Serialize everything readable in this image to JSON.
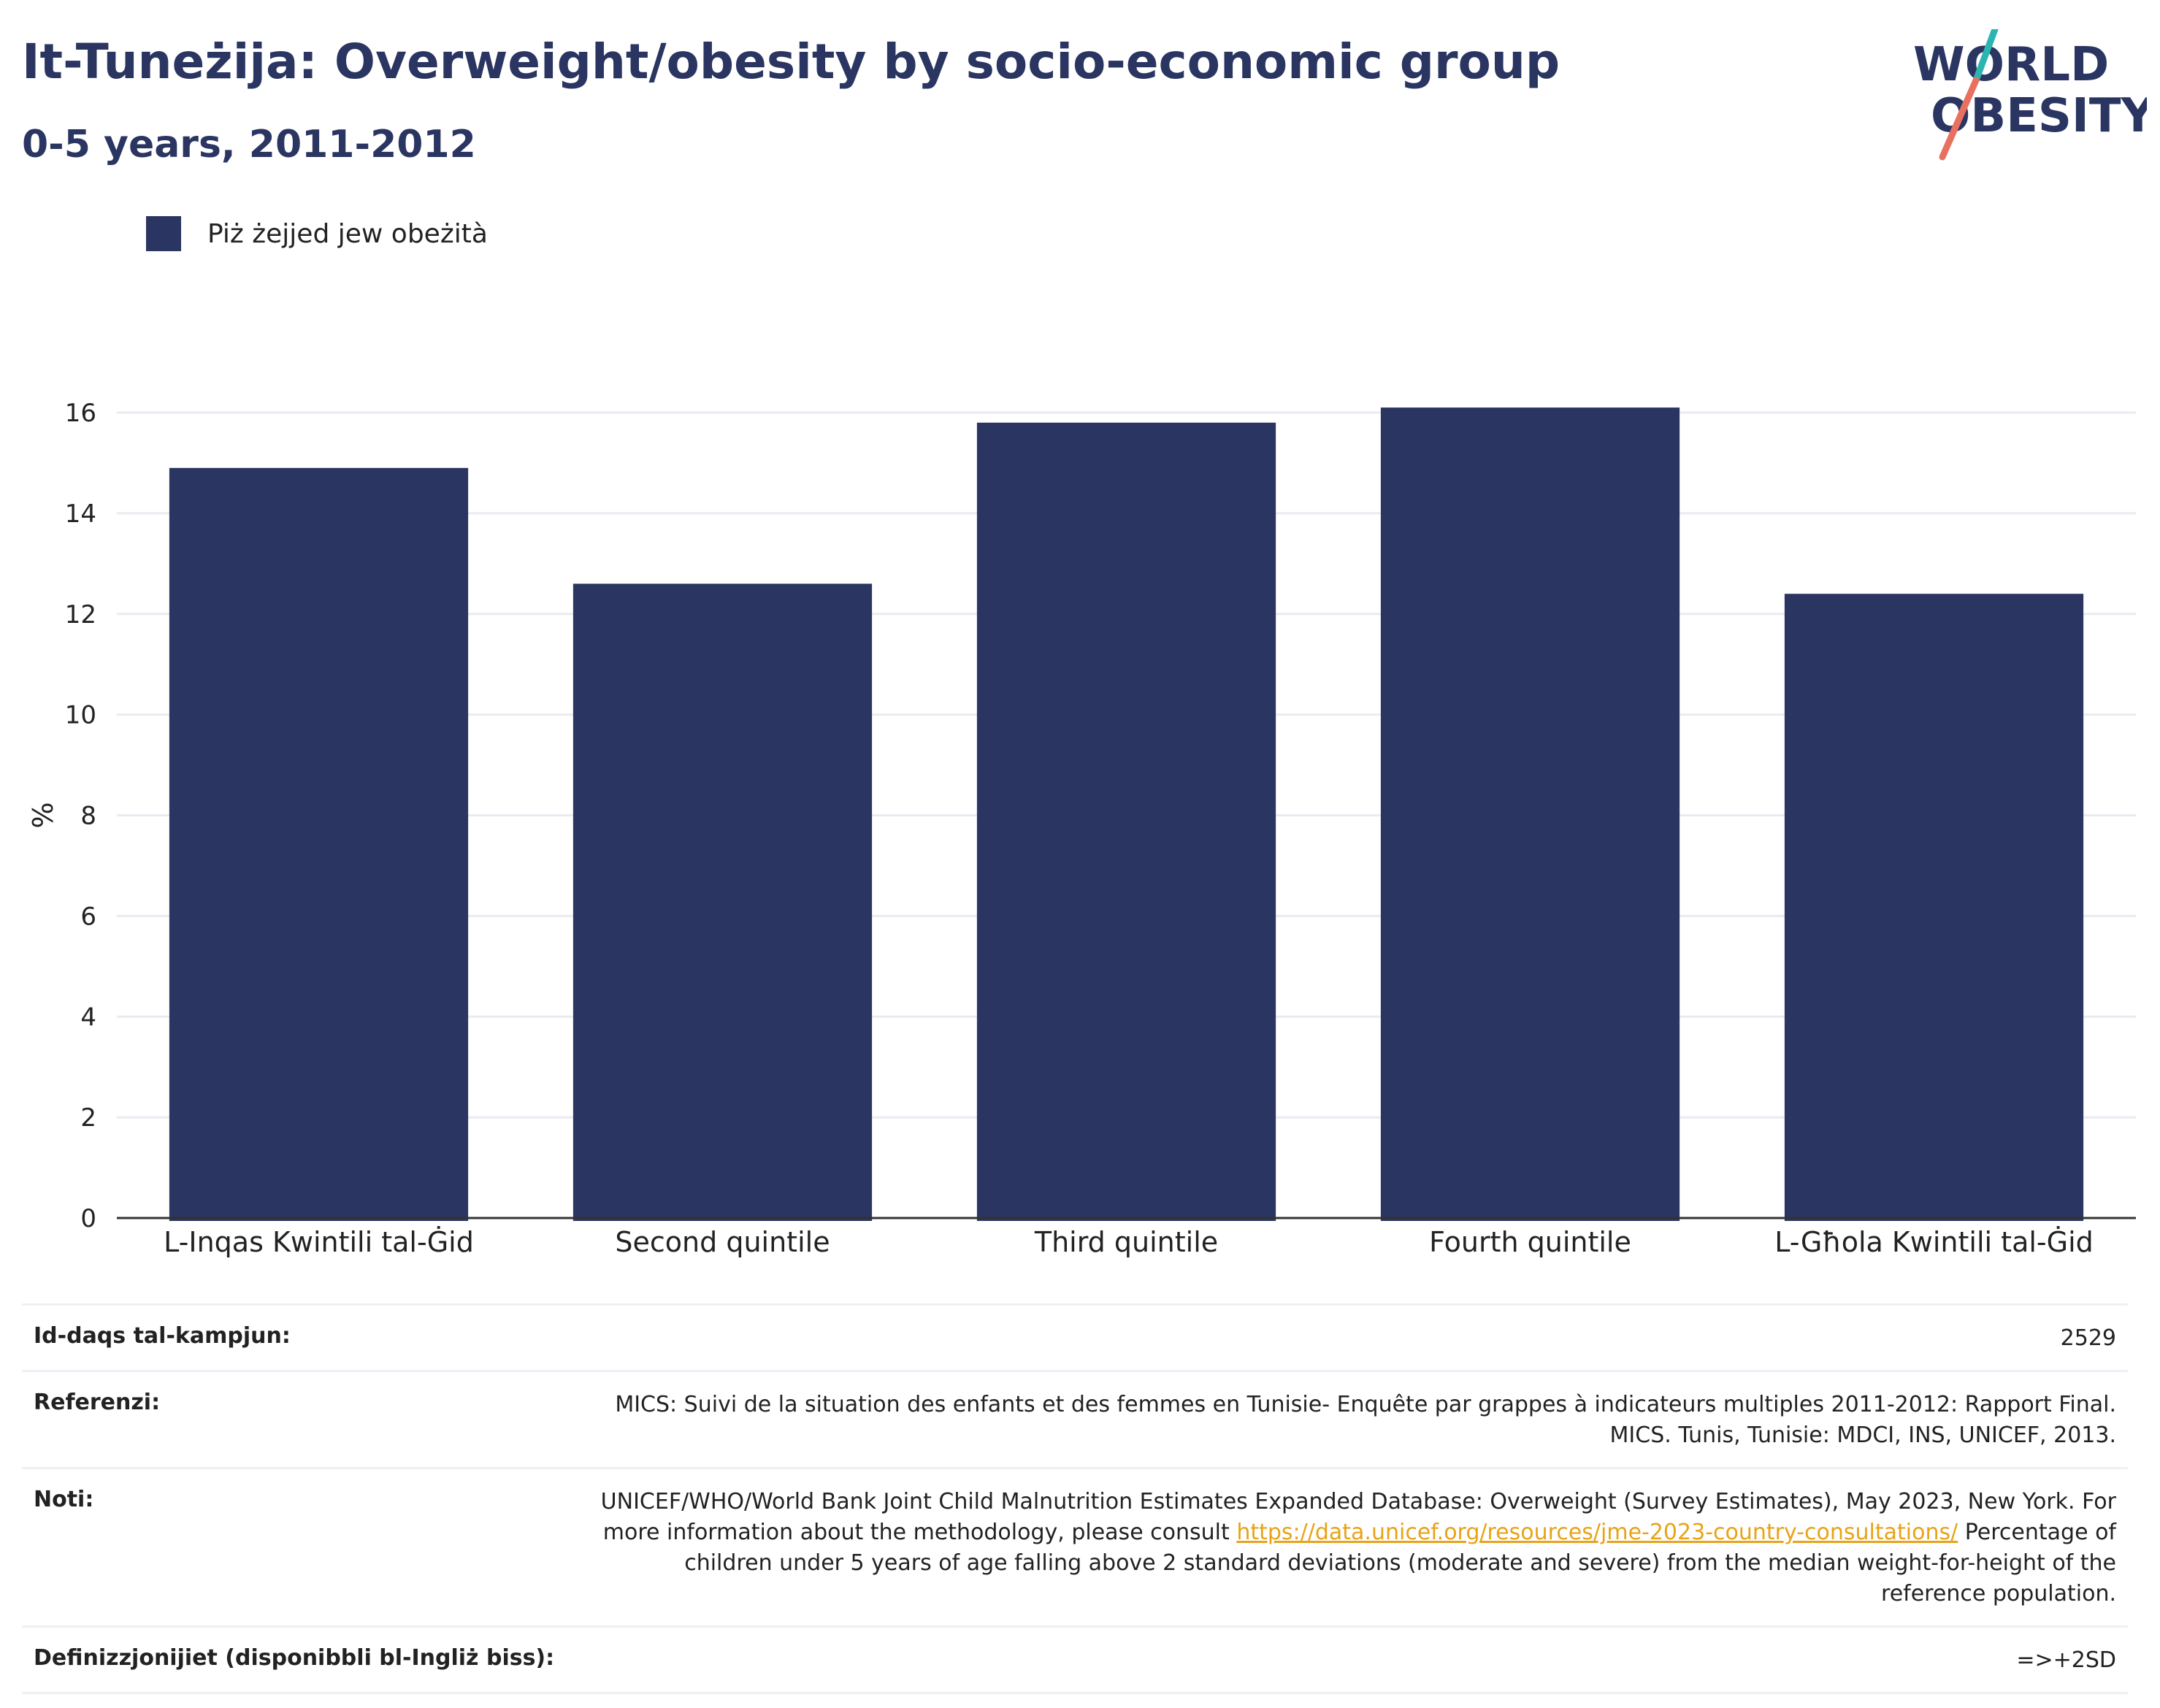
{
  "header": {
    "title": "It-Tuneżija: Overweight/obesity by socio-economic group",
    "subtitle": "0-5 years, 2011-2012"
  },
  "logo": {
    "line1": "WORLD",
    "line2": "OBESITY",
    "colors": {
      "text": "#2a3561",
      "slash_top": "#2cb5b0",
      "slash_bottom": "#e8705f"
    }
  },
  "legend": {
    "label": "Piż żejjed jew obeżità",
    "color": "#2a3561"
  },
  "chart_data": {
    "type": "bar",
    "categories": [
      "L-Inqas Kwintili tal-Ġid",
      "Second quintile",
      "Third quintile",
      "Fourth quintile",
      "L-Għola Kwintili tal-Ġid"
    ],
    "series": [
      {
        "name": "Piż żejjed jew obeżità",
        "values": [
          14.9,
          12.6,
          15.8,
          16.1,
          12.4
        ],
        "color": "#2a3561"
      }
    ],
    "ylabel": "%",
    "ylim": [
      0,
      16
    ],
    "yticks": [
      "0",
      "2",
      "4",
      "6",
      "8",
      "10",
      "12",
      "14",
      "16"
    ],
    "grid": true
  },
  "info": {
    "sample_size": {
      "label": "Id-daqs tal-kampjun:",
      "value": "2529"
    },
    "references": {
      "label": "Referenzi:",
      "value": "MICS: Suivi de la situation des enfants et des femmes en Tunisie- Enquête par grappes à indicateurs multiples 2011-2012: Rapport Final. MICS. Tunis, Tunisie: MDCI, INS, UNICEF, 2013."
    },
    "notes": {
      "label": "Noti:",
      "text_before": "UNICEF/WHO/World Bank Joint Child Malnutrition Estimates Expanded Database: Overweight (Survey Estimates), May 2023, New York. For more information about the methodology, please consult ",
      "link": "https://data.unicef.org/resources/jme-2023-country-consultations/",
      "text_after": " Percentage of children under 5 years of age falling above 2 standard deviations (moderate and severe) from the median weight-for-height of the reference population."
    },
    "definitions": {
      "label": "Definizzjonijiet (disponibbli bl-Ingliż biss):",
      "value": "=>+2SD"
    }
  }
}
